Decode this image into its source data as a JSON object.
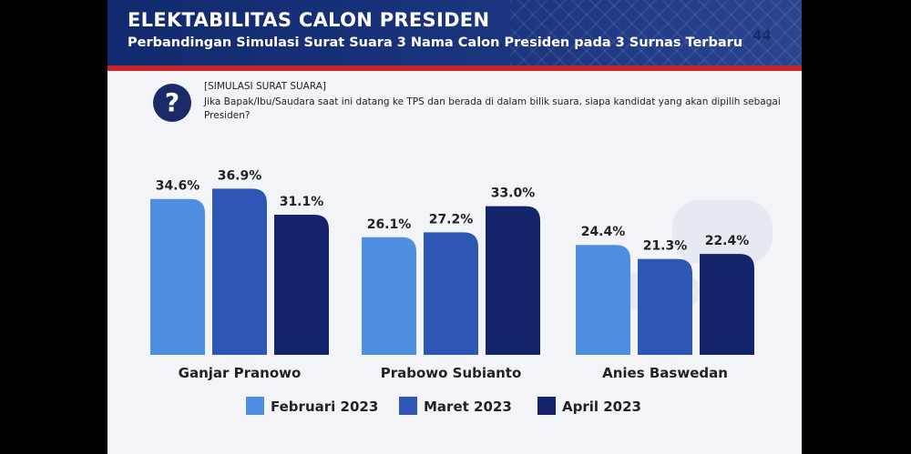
{
  "header": {
    "title": "ELEKTABILITAS CALON PRESIDEN",
    "subtitle": "Perbandingan Simulasi Surat Suara 3 Nama Calon Presiden pada 3 Surnas Terbaru",
    "page_number": "44"
  },
  "question": {
    "icon": "question-mark-icon",
    "label": "[SIMULASI SURAT SUARA]",
    "text": "Jika Bapak/Ibu/Saudara saat ini datang ke TPS dan berada di dalam bilik suara, siapa kandidat yang akan dipilih sebagai Presiden?"
  },
  "chart_data": {
    "type": "bar",
    "categories": [
      "Ganjar Pranowo",
      "Prabowo Subianto",
      "Anies Baswedan"
    ],
    "series": [
      {
        "name": "Februari 2023",
        "color": "#4f8ee0",
        "values": [
          34.6,
          26.1,
          24.4
        ],
        "labels": [
          "34.6%",
          "26.1%",
          "24.4%"
        ]
      },
      {
        "name": "Maret 2023",
        "color": "#2d56b5",
        "values": [
          36.9,
          27.2,
          21.3
        ],
        "labels": [
          "36.9%",
          "27.2%",
          "21.3%"
        ]
      },
      {
        "name": "April 2023",
        "color": "#14246b",
        "values": [
          31.1,
          33.0,
          22.4
        ],
        "labels": [
          "31.1%",
          "33.0%",
          "22.4%"
        ]
      }
    ],
    "unit": "%",
    "legend_position": "bottom",
    "grid": false
  }
}
